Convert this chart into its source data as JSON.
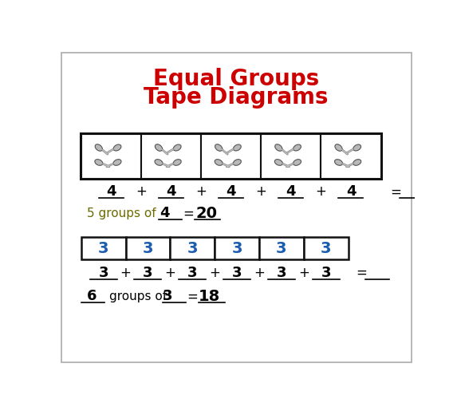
{
  "title_line1": "Equal Groups",
  "title_line2": "Tape Diagrams",
  "title_color": "#cc0000",
  "title_fontsize": 20,
  "bg_color": "white",
  "border_color": "#aaaaaa",
  "section1_group_values": [
    4,
    4,
    4,
    4,
    4
  ],
  "section1_sum": 20,
  "section1_groups_text": "5 groups of",
  "section1_group_val": "4",
  "section1_sum_val": "20",
  "section2_group_values": [
    3,
    3,
    3,
    3,
    3,
    3
  ],
  "section2_sum": 18,
  "section2_groups_text": "6",
  "section2_groups_of": "groups of",
  "section2_group_val": "3",
  "section2_sum_val": "18",
  "tape_number_color": "#1a5cb0",
  "box_edge_color": "#111111",
  "fig_w": 5.78,
  "fig_h": 5.15,
  "dpi": 100
}
